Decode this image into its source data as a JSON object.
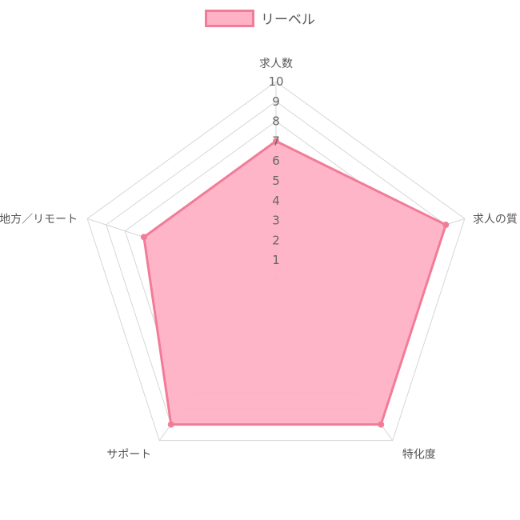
{
  "chart_data": {
    "type": "radar",
    "legend_position": "top",
    "series": [
      {
        "name": "リーベル",
        "values": [
          7,
          9,
          9,
          9,
          7
        ],
        "color": "#f17c98",
        "fill": "#ffb1c5"
      }
    ],
    "categories": [
      "求人数",
      "求人の質",
      "特化度",
      "サポート",
      "地方／リモート"
    ],
    "ticks": [
      "1",
      "2",
      "3",
      "4",
      "5",
      "6",
      "7",
      "8",
      "9",
      "10"
    ],
    "rlim": [
      0,
      10
    ],
    "grid": true
  }
}
